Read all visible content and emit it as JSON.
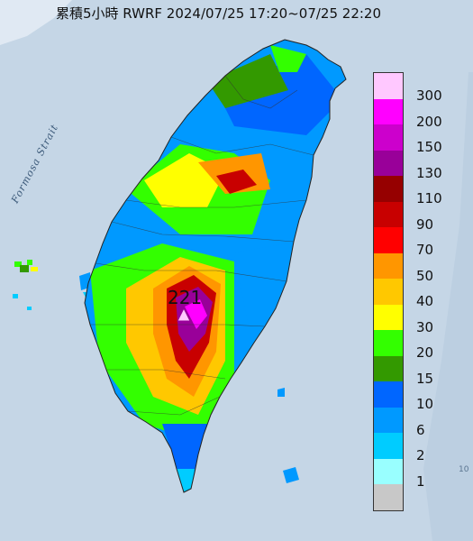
{
  "title": "累積5小時 RWRF 2024/07/25 17:20~07/25 22:20",
  "strait_label": "Formosa Strait",
  "max_label": "221",
  "corner_label": "10",
  "legend": [
    {
      "label": "300",
      "color": "#ffc8ff"
    },
    {
      "label": "200",
      "color": "#ff00ff"
    },
    {
      "label": "150",
      "color": "#cc00cc"
    },
    {
      "label": "130",
      "color": "#990099"
    },
    {
      "label": "110",
      "color": "#960000"
    },
    {
      "label": "90",
      "color": "#c80000"
    },
    {
      "label": "70",
      "color": "#ff0000"
    },
    {
      "label": "50",
      "color": "#ff9600"
    },
    {
      "label": "40",
      "color": "#ffc800"
    },
    {
      "label": "30",
      "color": "#ffff00"
    },
    {
      "label": "20",
      "color": "#33ff00"
    },
    {
      "label": "15",
      "color": "#339900"
    },
    {
      "label": "10",
      "color": "#0066ff"
    },
    {
      "label": "6",
      "color": "#0099ff"
    },
    {
      "label": "2",
      "color": "#00ccff"
    },
    {
      "label": "1",
      "color": "#99ffff"
    },
    {
      "label": "",
      "color": "#c8c8c8"
    }
  ]
}
